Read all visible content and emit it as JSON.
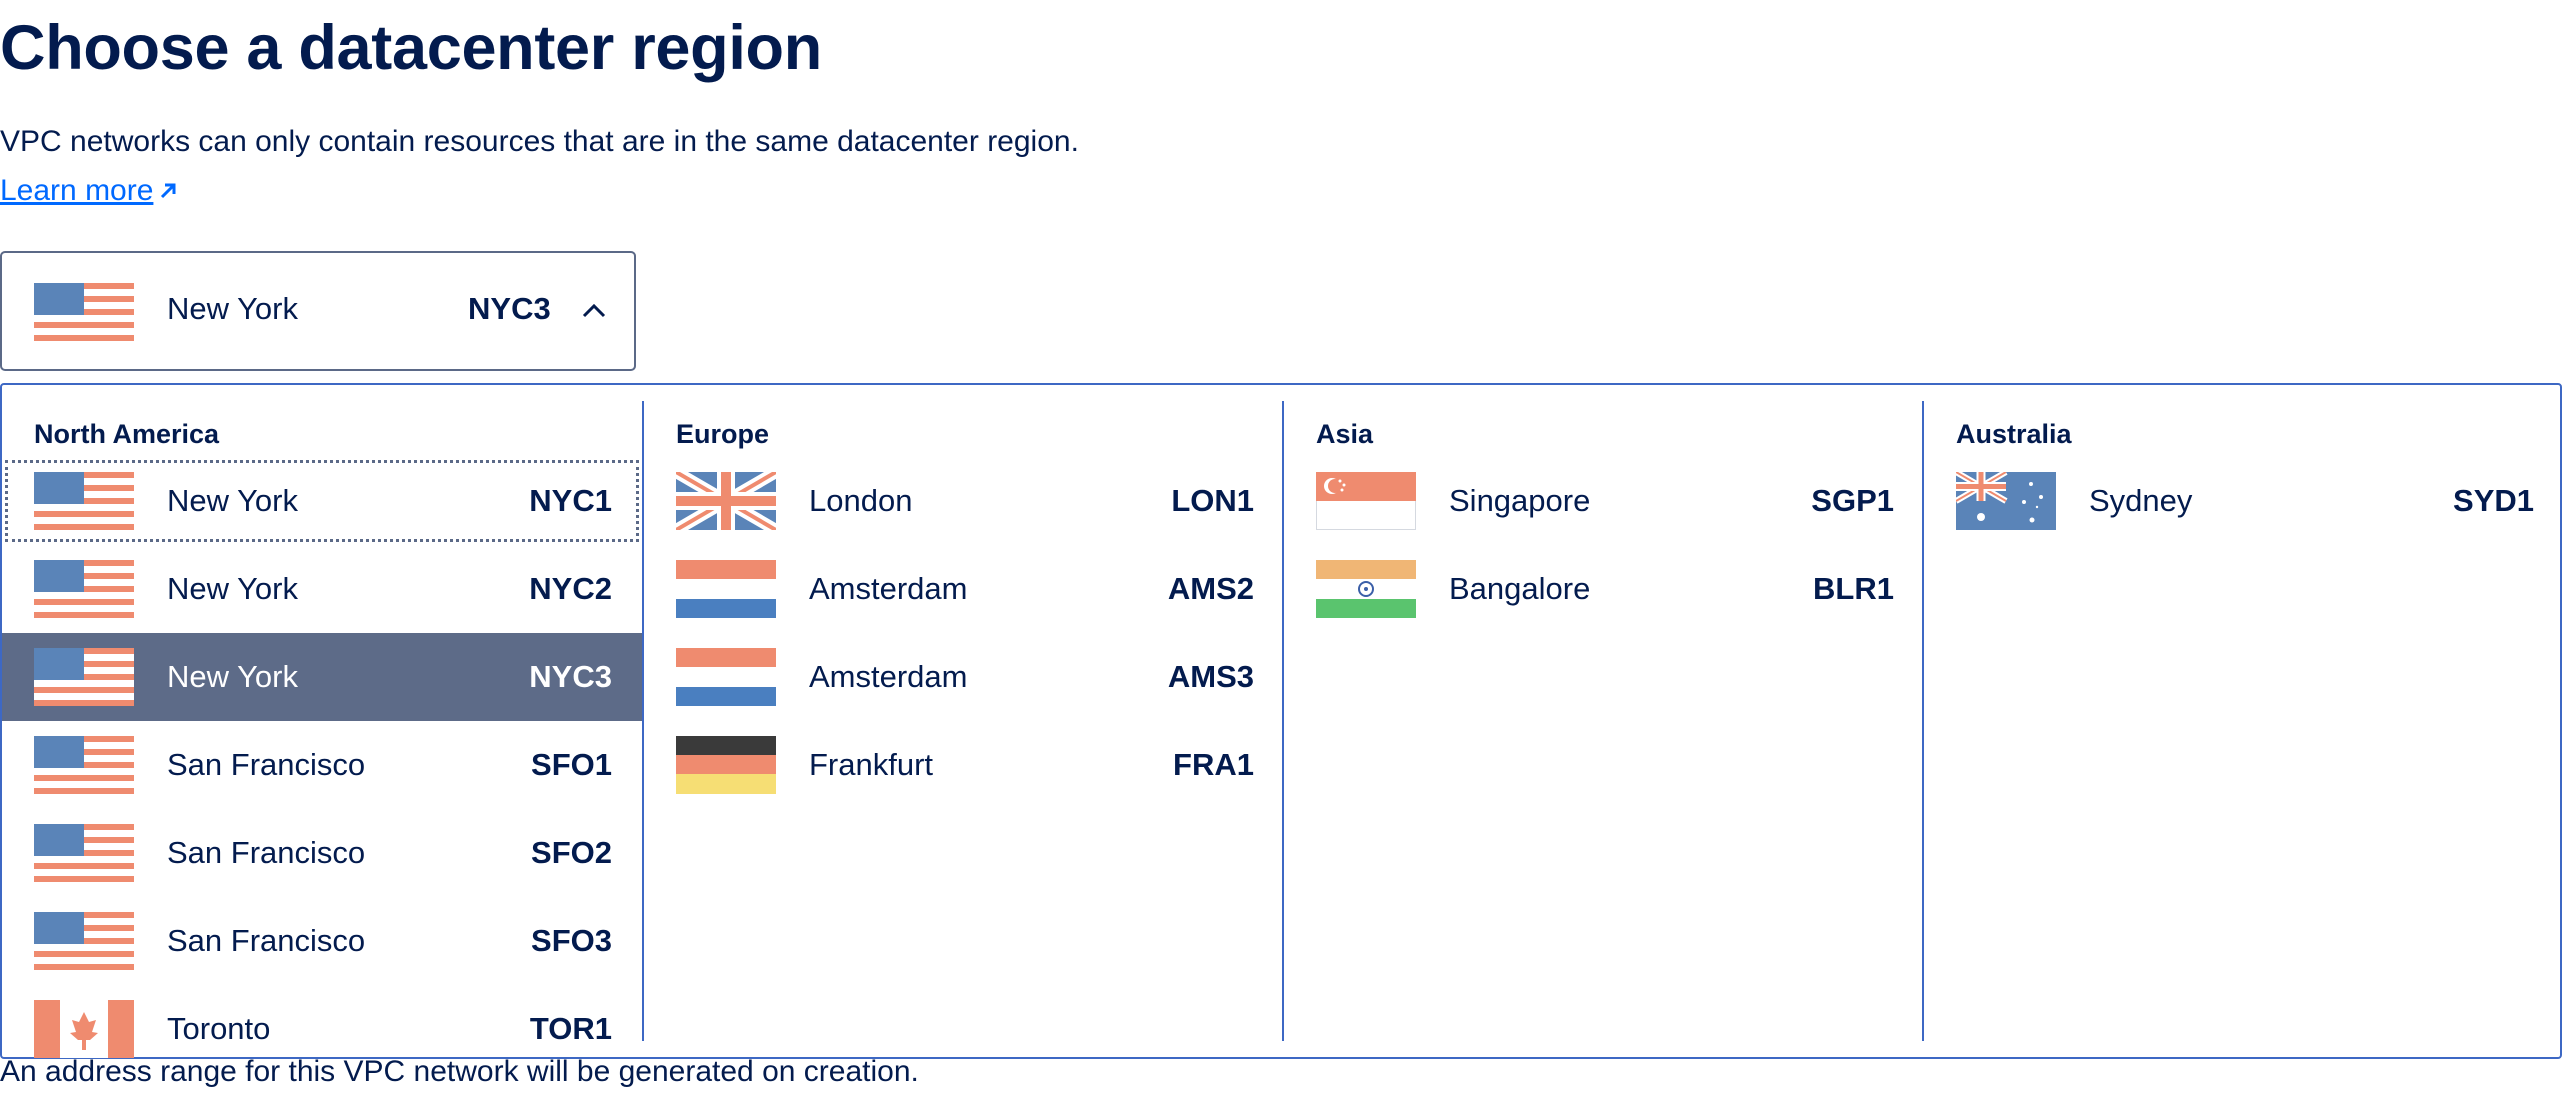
{
  "page": {
    "title": "Choose a datacenter region",
    "description": "VPC networks can only contain resources that are in the same datacenter region.",
    "learn_more": "Learn more",
    "footer": "An address range for this VPC network will be generated on creation."
  },
  "colors": {
    "text": "#031b4e",
    "link": "#0069ff",
    "selected_bg": "#5d6b88",
    "border": "#3d68c4"
  },
  "selector": {
    "city": "New York",
    "code": "NYC3",
    "flag": "us-flag-icon",
    "expanded": true
  },
  "regions": [
    {
      "name": "North America",
      "options": [
        {
          "city": "New York",
          "code": "NYC1",
          "flag": "us",
          "state": "focused"
        },
        {
          "city": "New York",
          "code": "NYC2",
          "flag": "us",
          "state": ""
        },
        {
          "city": "New York",
          "code": "NYC3",
          "flag": "us",
          "state": "selected"
        },
        {
          "city": "San Francisco",
          "code": "SFO1",
          "flag": "us",
          "state": ""
        },
        {
          "city": "San Francisco",
          "code": "SFO2",
          "flag": "us",
          "state": ""
        },
        {
          "city": "San Francisco",
          "code": "SFO3",
          "flag": "us",
          "state": ""
        },
        {
          "city": "Toronto",
          "code": "TOR1",
          "flag": "ca",
          "state": ""
        }
      ]
    },
    {
      "name": "Europe",
      "options": [
        {
          "city": "London",
          "code": "LON1",
          "flag": "gb",
          "state": ""
        },
        {
          "city": "Amsterdam",
          "code": "AMS2",
          "flag": "nl",
          "state": ""
        },
        {
          "city": "Amsterdam",
          "code": "AMS3",
          "flag": "nl",
          "state": ""
        },
        {
          "city": "Frankfurt",
          "code": "FRA1",
          "flag": "de",
          "state": ""
        }
      ]
    },
    {
      "name": "Asia",
      "options": [
        {
          "city": "Singapore",
          "code": "SGP1",
          "flag": "sg",
          "state": ""
        },
        {
          "city": "Bangalore",
          "code": "BLR1",
          "flag": "in",
          "state": ""
        }
      ]
    },
    {
      "name": "Australia",
      "options": [
        {
          "city": "Sydney",
          "code": "SYD1",
          "flag": "au",
          "state": ""
        }
      ]
    }
  ]
}
